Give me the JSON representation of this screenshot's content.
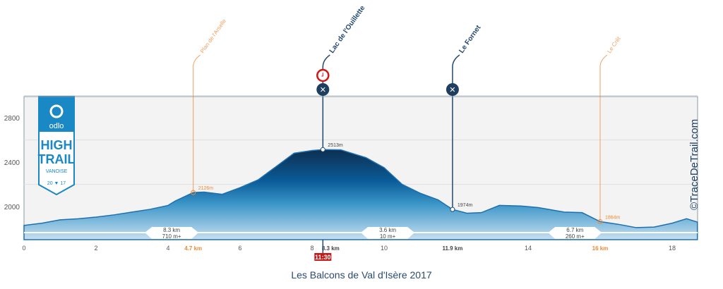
{
  "chart_data": {
    "type": "area",
    "title": "Les Balcons de Val d'Isère 2017",
    "xlim": [
      0,
      18.7
    ],
    "ylim": [
      1700,
      3000
    ],
    "x_ticks": [
      0,
      2,
      4,
      6,
      8,
      10,
      14,
      18
    ],
    "y_ticks": [
      2000,
      2400,
      2800
    ],
    "grid": true,
    "series": [
      {
        "x": [
          0,
          0.5,
          1,
          1.5,
          2,
          2.5,
          3,
          3.5,
          4,
          4.2,
          4.7,
          5,
          5.5,
          6,
          6.5,
          7,
          7.5,
          8,
          8.3,
          8.8,
          9.5,
          10,
          10.5,
          11,
          11.5,
          11.9,
          12.3,
          12.7,
          13.2,
          13.8,
          14.3,
          15,
          15.5,
          16,
          16.5,
          17,
          17.5,
          18,
          18.4,
          18.7
        ],
        "y": [
          1830,
          1850,
          1880,
          1890,
          1905,
          1925,
          1950,
          1975,
          2010,
          2050,
          2126,
          2130,
          2110,
          2170,
          2240,
          2360,
          2480,
          2505,
          2513,
          2510,
          2440,
          2350,
          2200,
          2120,
          2060,
          1974,
          1940,
          1945,
          2010,
          2005,
          1990,
          1950,
          1945,
          1864,
          1840,
          1810,
          1815,
          1850,
          1890,
          1860
        ]
      }
    ],
    "waypoints": [
      {
        "name": "Plan de l'Arselle",
        "km": 4.7,
        "km_label": "4.7 km",
        "elev_label": "2126m",
        "color": "#f0a060",
        "icons": []
      },
      {
        "name": "Lac de l'Ouillette",
        "km": 8.3,
        "km_label": "8.3 km",
        "elev_label": "2513m",
        "color": "#24496e",
        "icons": [
          "clock-icon",
          "food-icon"
        ],
        "time": "11:30"
      },
      {
        "name": "Le Fornet",
        "km": 11.9,
        "km_label": "11.9 km",
        "elev_label": "1974m",
        "color": "#24496e",
        "icons": [
          "food-icon"
        ]
      },
      {
        "name": "Le Crêt",
        "km": 16,
        "km_label": "16 km",
        "elev_label": "1864m",
        "color": "#f0a060",
        "icons": []
      }
    ],
    "segments": [
      {
        "mid_km": 4.1,
        "dist": "8.3 km",
        "gain": "710 m+"
      },
      {
        "mid_km": 10.1,
        "dist": "3.6 km",
        "gain": "10 m+"
      },
      {
        "mid_km": 15.3,
        "dist": "6.7 km",
        "gain": "260 m+"
      }
    ],
    "watermark": "©TraceDeTrail.com",
    "logo_text": [
      "odlo",
      "HIGH",
      "TRAIL",
      "VANOISE",
      "20",
      "17"
    ]
  }
}
